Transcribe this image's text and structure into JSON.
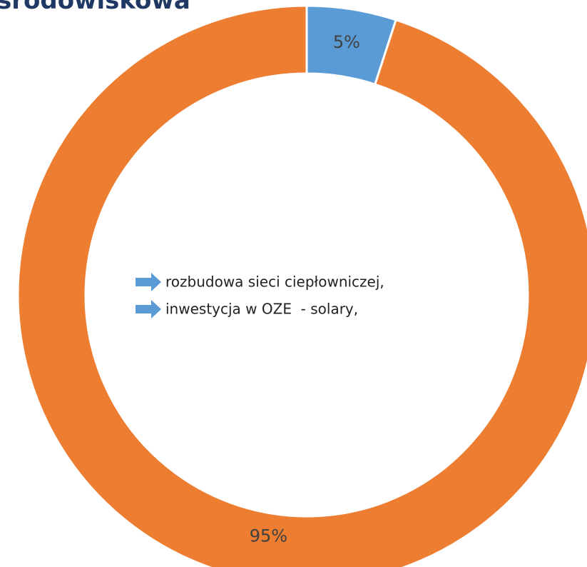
{
  "chart_data": {
    "type": "pie",
    "donut": true,
    "title": "środowiskowa",
    "values": [
      5,
      95
    ],
    "value_labels": [
      "5%",
      "95%"
    ],
    "colors": [
      "#5b9bd5",
      "#ed7d31"
    ],
    "annotations": [
      "rozbudowa sieci ciepłowniczej,",
      "inwestycja w OZE  - solary,"
    ]
  }
}
